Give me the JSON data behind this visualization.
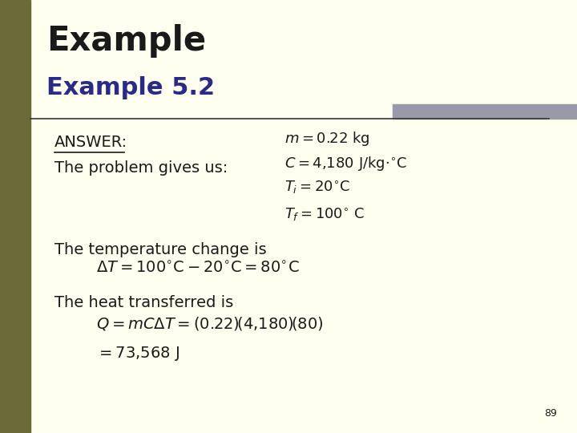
{
  "bg_color": "#FFFFF0",
  "left_bar_color": "#6B6B3A",
  "top_bar_color": "#9999AA",
  "title_main": "Example",
  "title_sub": "Example 5.2",
  "page_number": "89",
  "answer_label": "ANSWER:",
  "line1": "The problem gives us:",
  "line2": "The temperature change is",
  "line3": "The heat transferred is",
  "dark_color": "#1a1a1a",
  "blue_color": "#2a2a8a"
}
